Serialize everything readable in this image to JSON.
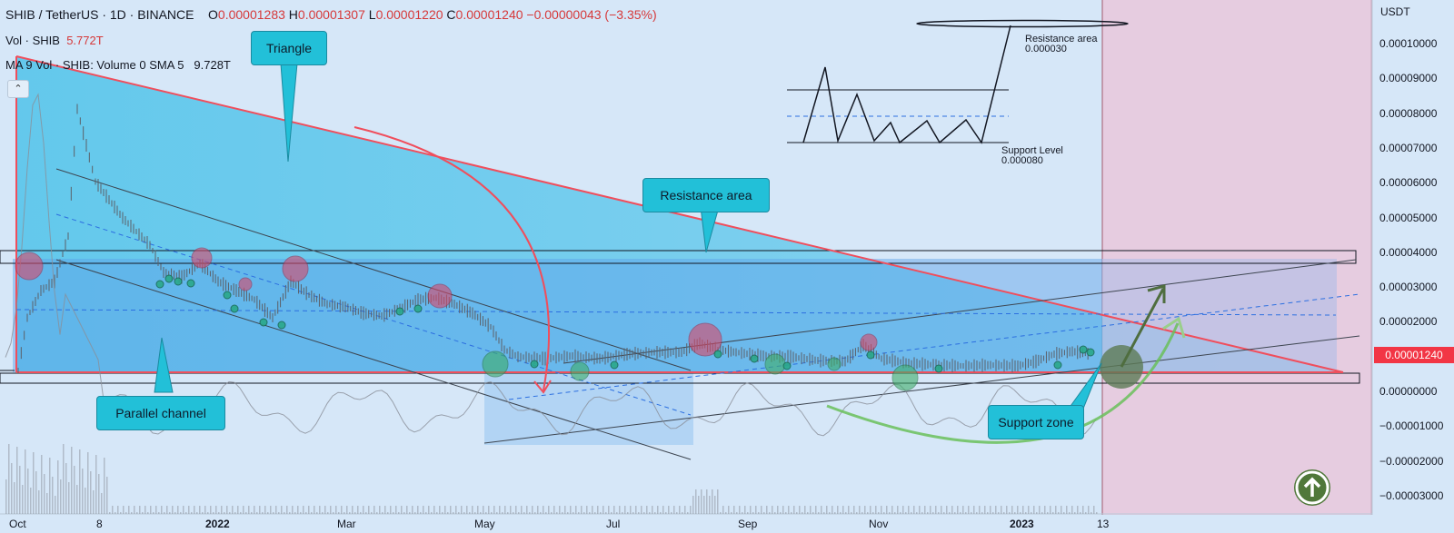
{
  "header": {
    "symbol": "SHIB / TetherUS · 1D · BINANCE",
    "open_label": "O",
    "open": "0.00001283",
    "high_label": "H",
    "high": "0.00001307",
    "low_label": "L",
    "low": "0.00001220",
    "close_label": "C",
    "close": "0.00001240",
    "change": "−0.00000043 (−3.35%)",
    "vol_label": "Vol · SHIB",
    "vol_value": "5.772T",
    "ma_label": "MA 9 Vol · SHIB: Volume 0 SMA 5",
    "ma_value": "9.728T"
  },
  "collapse_icon": "chevron-up-icon",
  "price_axis": {
    "unit": "USDT",
    "labels": [
      "0.00010000",
      "0.00009000",
      "0.00008000",
      "0.00007000",
      "0.00006000",
      "0.00005000",
      "0.00004000",
      "0.00003000",
      "0.00002000",
      "0.00001000",
      "0.00000000",
      "−0.00001000",
      "−0.00002000",
      "−0.00003000"
    ],
    "current_price": "0.00001240"
  },
  "time_axis": {
    "labels": [
      "Oct",
      "8",
      "2022",
      "Mar",
      "May",
      "Jul",
      "Sep",
      "Nov",
      "2023",
      "13"
    ]
  },
  "annotations": {
    "triangle": "Triangle",
    "resistance_area": "Resistance area",
    "parallel_channel": "Parallel channel",
    "support_zone": "Support zone",
    "mini_resistance_title": "Resistance area",
    "mini_resistance_value": "0.000030",
    "mini_support_title": "Support Level",
    "mini_support_value": "0.000080"
  },
  "colors": {
    "background": "#d6e7f8",
    "forecast_zone": "#e6cce0",
    "triangle_fill": "#4fc3ea",
    "triangle_line": "#f04e5c",
    "candle": "#5c6068",
    "support_circle": "#3fae6a",
    "resistance_circle": "#d9486a",
    "callout": "#22c0d8",
    "arrow_green": "#6abf5a",
    "price_tag": "#f23645"
  },
  "scroll_button_icon": "arrow-up-circle-icon"
}
